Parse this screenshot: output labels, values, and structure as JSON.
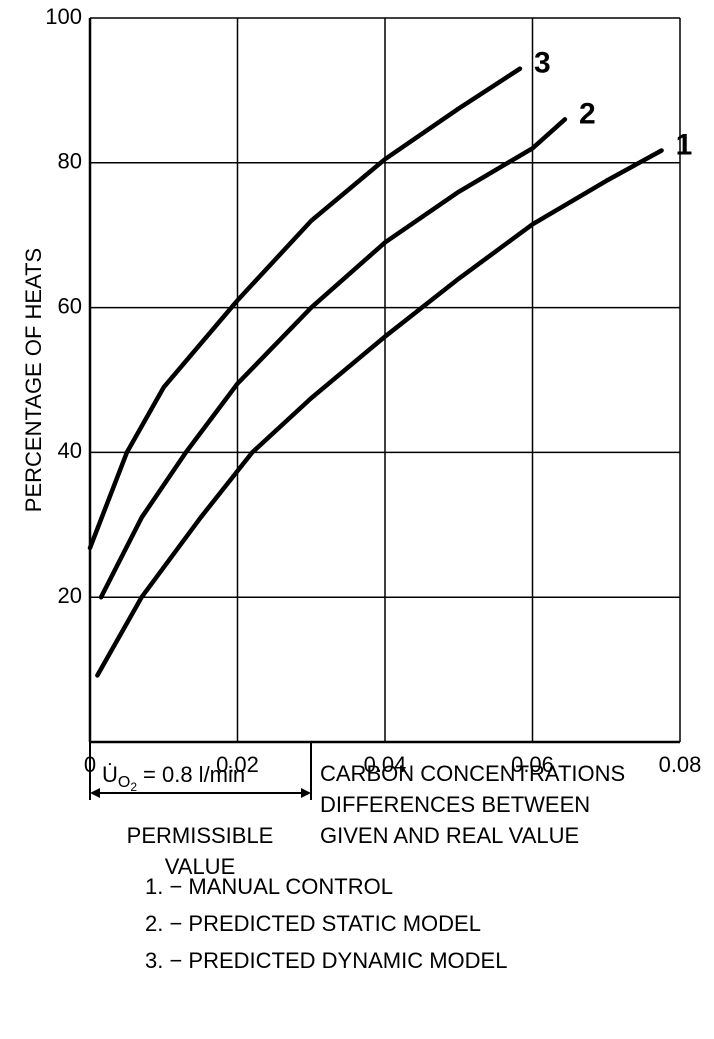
{
  "chart_data": {
    "type": "line",
    "y_label": "PERCENTAGE OF HEATS",
    "x_label": [
      "CARBON CONCENTRATIONS",
      "DIFFERENCES BETWEEN",
      "GIVEN AND REAL VALUE"
    ],
    "annotations": {
      "symbol": "U̇",
      "subscript": "O",
      "sub_subscript": "2",
      "equation": "= 0.8 l/min",
      "permissible": [
        "PERMISSIBLE",
        "VALUE"
      ]
    },
    "xlim": [
      0,
      0.08
    ],
    "xticks": [
      0,
      0.02,
      0.04,
      0.06,
      0.08
    ],
    "ylim": [
      0,
      100
    ],
    "yticks": [
      20,
      40,
      60,
      80,
      100
    ],
    "grid": true,
    "series": [
      {
        "name": "1. − MANUAL CONTROL",
        "label": "1",
        "color": "#000000",
        "x": [
          0.001,
          0.007,
          0.015,
          0.022,
          0.03,
          0.04,
          0.05,
          0.06,
          0.07,
          0.0775
        ],
        "values": [
          9.2,
          20,
          31,
          40,
          47.5,
          56,
          64,
          71.5,
          77.5,
          81.7
        ]
      },
      {
        "name": "2. − PREDICTED STATIC MODEL",
        "label": "2",
        "color": "#000000",
        "x": [
          0.0015,
          0.007,
          0.013,
          0.02,
          0.03,
          0.04,
          0.05,
          0.06,
          0.0644
        ],
        "values": [
          20,
          31,
          40,
          49.5,
          60,
          69,
          76,
          82,
          86
        ]
      },
      {
        "name": "3. − PREDICTED DYNAMIC MODEL",
        "label": "3",
        "color": "#000000",
        "x": [
          0,
          0.005,
          0.01,
          0.02,
          0.03,
          0.04,
          0.05,
          0.0583
        ],
        "values": [
          26.8,
          40,
          49,
          61,
          72,
          80.5,
          87.5,
          93
        ]
      }
    ]
  }
}
